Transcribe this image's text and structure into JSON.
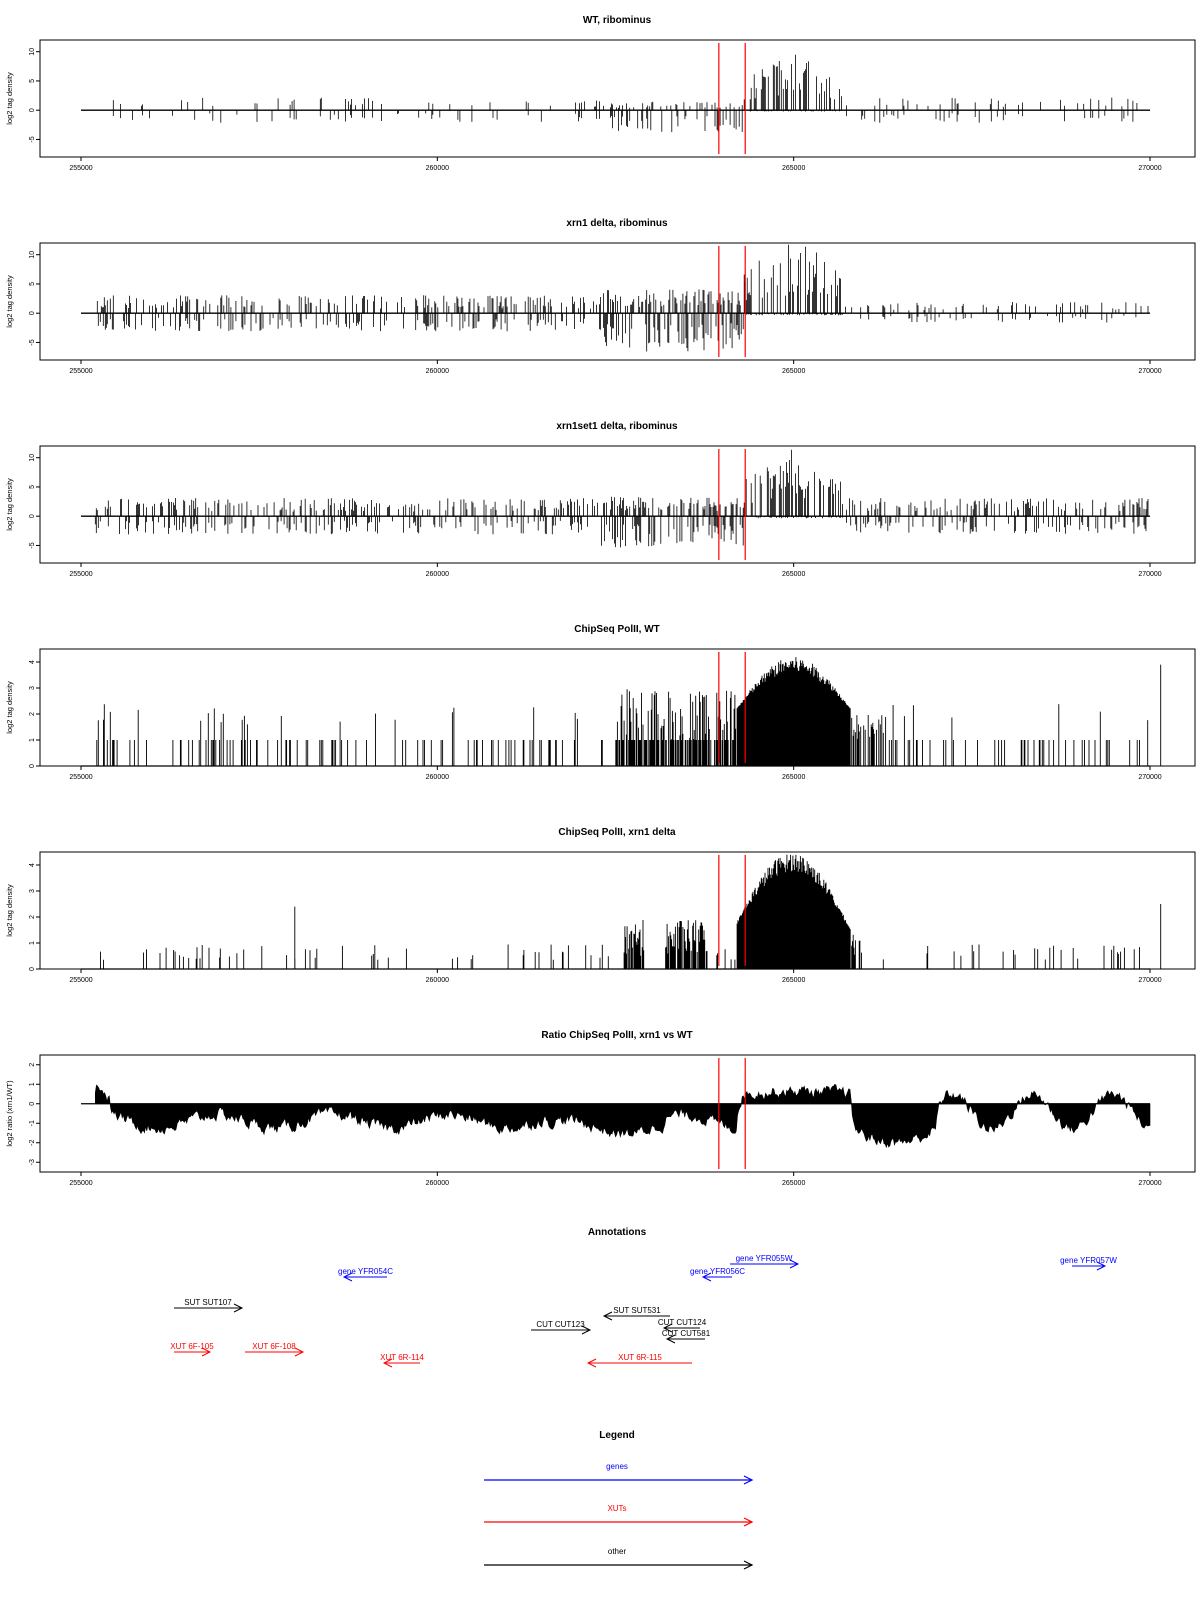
{
  "chart_data": [
    {
      "type": "bar",
      "title": "WT, ribominus",
      "ylabel": "log2 tag density",
      "xlim": [
        255000,
        270000
      ],
      "ylim": [
        -8,
        12
      ],
      "yticks": [
        -5,
        0,
        5,
        10
      ],
      "xticks": [
        "255000",
        "260000",
        "265000",
        "270000"
      ],
      "markers_x": [
        263950,
        264320
      ],
      "series": [
        {
          "values": [
            [
              255200,
              0.3
            ],
            [
              255350,
              -1.5
            ],
            [
              255400,
              1.5
            ],
            [
              255450,
              -2.5
            ],
            [
              255500,
              2.0
            ],
            [
              255600,
              -1.0
            ],
            [
              255700,
              1.8
            ],
            [
              255800,
              2.2
            ],
            [
              255900,
              -0.8
            ],
            [
              256000,
              1.0
            ],
            [
              256200,
              1.6
            ],
            [
              256300,
              -0.5
            ],
            [
              256500,
              1.2
            ],
            [
              256600,
              3.2
            ],
            [
              256650,
              -1.8
            ],
            [
              256700,
              3.5
            ],
            [
              256800,
              1.0
            ],
            [
              257000,
              -1.2
            ],
            [
              257200,
              2.0
            ],
            [
              257400,
              1.1
            ],
            [
              257700,
              -2.0
            ],
            [
              257900,
              3.0
            ],
            [
              258000,
              -1.0
            ],
            [
              258200,
              2.4
            ],
            [
              258400,
              2.0
            ],
            [
              258600,
              -2.5
            ],
            [
              258800,
              1.5
            ],
            [
              258900,
              -1.0
            ],
            [
              259100,
              2.0
            ],
            [
              259300,
              -2.0
            ],
            [
              259500,
              1.6
            ],
            [
              259700,
              2.4
            ],
            [
              259900,
              -1.5
            ],
            [
              260000,
              2.0
            ],
            [
              260200,
              -2.8
            ],
            [
              260400,
              2.4
            ],
            [
              260600,
              1.0
            ],
            [
              260800,
              -1.5
            ],
            [
              261000,
              1.2
            ],
            [
              261300,
              0.8
            ],
            [
              261600,
              0.6
            ],
            [
              261900,
              -0.5
            ],
            [
              262000,
              1.0
            ],
            [
              262200,
              -1.5
            ],
            [
              262300,
              -2.4
            ],
            [
              262400,
              -1.8
            ],
            [
              262500,
              -3.0
            ],
            [
              262600,
              -4.5
            ],
            [
              262700,
              -3.8
            ],
            [
              262800,
              -2.0
            ],
            [
              262900,
              -3.2
            ],
            [
              263000,
              -2.2
            ],
            [
              263100,
              -1.5
            ],
            [
              263200,
              -2.8
            ],
            [
              263300,
              -1.0
            ],
            [
              263400,
              1.5
            ],
            [
              263600,
              2.0
            ],
            [
              263800,
              1.0
            ],
            [
              263950,
              1.5
            ],
            [
              264100,
              2.8
            ]
          ],
          "style": "spikes"
        }
      ]
    },
    {
      "type": "bar",
      "title": "xrn1 delta, ribominus",
      "ylabel": "log2 tag density",
      "xlim": [
        255000,
        270000
      ],
      "ylim": [
        -8,
        12
      ],
      "yticks": [
        -5,
        0,
        5,
        10
      ],
      "xticks": [
        "255000",
        "260000",
        "265000",
        "270000"
      ],
      "markers_x": [
        263950,
        264320
      ]
    },
    {
      "type": "bar",
      "title": "xrn1set1 delta, ribominus",
      "ylabel": "log2 tag density",
      "xlim": [
        255000,
        270000
      ],
      "ylim": [
        -8,
        12
      ],
      "yticks": [
        -5,
        0,
        5,
        10
      ],
      "xticks": [
        "255000",
        "260000",
        "265000",
        "270000"
      ],
      "markers_x": [
        263950,
        264320
      ]
    },
    {
      "type": "bar",
      "title": "ChipSeq PolII, WT",
      "ylabel": "log2 tag density",
      "xlim": [
        255000,
        270000
      ],
      "ylim": [
        0,
        4.5
      ],
      "yticks": [
        0,
        1,
        2,
        3,
        4
      ],
      "xticks": [
        "255000",
        "260000",
        "265000",
        "270000"
      ],
      "markers_x": [
        263950,
        264320
      ]
    },
    {
      "type": "bar",
      "title": "ChipSeq PolII, xrn1 delta",
      "ylabel": "log2 tag density",
      "xlim": [
        255000,
        270000
      ],
      "ylim": [
        0,
        4.5
      ],
      "yticks": [
        0,
        1,
        2,
        3,
        4
      ],
      "xticks": [
        "255000",
        "260000",
        "265000",
        "270000"
      ],
      "markers_x": [
        263950,
        264320
      ]
    },
    {
      "type": "area",
      "title": "Ratio ChipSeq PolII, xrn1 vs WT",
      "ylabel": "log2 ratio (xrn1/WT)",
      "xlim": [
        255000,
        270000
      ],
      "ylim": [
        -3.5,
        2.5
      ],
      "yticks": [
        -3,
        -2,
        -1,
        0,
        1,
        2
      ],
      "xticks": [
        "255000",
        "260000",
        "265000",
        "270000"
      ],
      "markers_x": [
        263950,
        264320
      ]
    }
  ],
  "annotations": {
    "title": "Annotations",
    "features": [
      {
        "label": "gene YFR054C",
        "class": "gene",
        "direction": "left"
      },
      {
        "label": "gene YFR055W",
        "class": "gene",
        "direction": "right"
      },
      {
        "label": "gene YFR056C",
        "class": "gene",
        "direction": "left"
      },
      {
        "label": "gene YFR057W",
        "class": "gene",
        "direction": "right"
      },
      {
        "label": "SUT SUT107",
        "class": "other",
        "direction": "right"
      },
      {
        "label": "SUT SUT531",
        "class": "other",
        "direction": "left"
      },
      {
        "label": "CUT CUT123",
        "class": "other",
        "direction": "right"
      },
      {
        "label": "CUT CUT124",
        "class": "other",
        "direction": "left"
      },
      {
        "label": "CUT CUT581",
        "class": "other",
        "direction": "left"
      },
      {
        "label": "XUT 6F-105",
        "class": "xut",
        "direction": "right"
      },
      {
        "label": "XUT 6F-108",
        "class": "xut",
        "direction": "right"
      },
      {
        "label": "XUT 6R-114",
        "class": "xut",
        "direction": "left"
      },
      {
        "label": "XUT 6R-115",
        "class": "xut",
        "direction": "left"
      }
    ]
  },
  "legend": {
    "title": "Legend",
    "items": [
      {
        "label": "genes",
        "color": "#0000ff"
      },
      {
        "label": "XUTs",
        "color": "#ff0000"
      },
      {
        "label": "other",
        "color": "#000000"
      }
    ]
  },
  "colors": {
    "gene": "#0000ff",
    "xut": "#ff0000",
    "other": "#000000",
    "marker": "#ff0000"
  }
}
